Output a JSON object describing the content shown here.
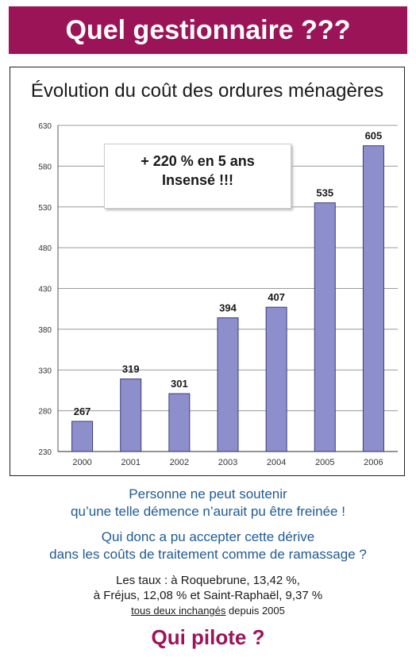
{
  "banner": {
    "title": "Quel gestionnaire ???"
  },
  "chart_data": {
    "type": "bar",
    "title": "Évolution du coût des ordures ménagères",
    "categories": [
      "2000",
      "2001",
      "2002",
      "2003",
      "2004",
      "2005",
      "2006"
    ],
    "values": [
      267,
      319,
      301,
      394,
      407,
      535,
      605
    ],
    "data_labels": [
      "267",
      "319",
      "301",
      "394",
      "407",
      "535",
      "605"
    ],
    "ylim": [
      230,
      630
    ],
    "yticks": [
      "230",
      "280",
      "330",
      "380",
      "430",
      "480",
      "530",
      "580",
      "630"
    ],
    "xlabel": "",
    "ylabel": "",
    "grid": true,
    "bar_color": "#8c8fcb",
    "annotation": {
      "line1": "+ 220 % en 5 ans",
      "line2": "Insensé !!!"
    }
  },
  "text": {
    "p1_line1": "Personne ne peut soutenir",
    "p1_line2": "qu’une telle démence n’aurait pu être freinée !",
    "p2_line1": "Qui donc a pu accepter cette dérive",
    "p2_line2": "dans les coûts de traitement comme de ramassage ?",
    "p3_line1": "Les taux : à Roquebrune, 13,42 %,",
    "p3_line2": "à Fréjus, 12,08 % et Saint-Raphaël, 9,37 %",
    "p3_line3_underlined": "tous deux inchangés",
    "p3_line3_rest": " depuis 2005"
  },
  "footer": {
    "title": "Qui pilote ?"
  },
  "colors": {
    "brand": "#9c1458",
    "blue_text": "#1f5a94"
  }
}
